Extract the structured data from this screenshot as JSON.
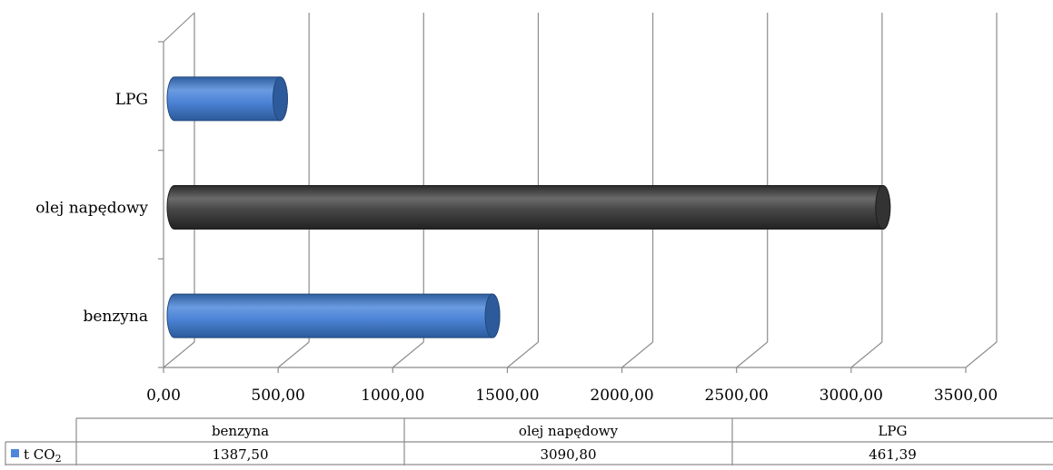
{
  "chart_data": {
    "type": "bar",
    "orientation": "horizontal",
    "style": "3d-cylinder",
    "categories": [
      "benzyna",
      "olej napędowy",
      "LPG"
    ],
    "series": [
      {
        "name": "t CO₂",
        "values": [
          1387.5,
          3090.8,
          461.39
        ]
      }
    ],
    "value_labels": [
      "1387,50",
      "3090,80",
      "461,39"
    ],
    "xlim": [
      0,
      3500
    ],
    "x_ticks": [
      0,
      500,
      1000,
      1500,
      2000,
      2500,
      3000,
      3500
    ],
    "x_tick_labels": [
      "0,00",
      "500,00",
      "1000,00",
      "1500,00",
      "2000,00",
      "2500,00",
      "3000,00",
      "3500,00"
    ],
    "bar_colors": [
      "#4f86d9",
      "#4a4a4a",
      "#4f86d9"
    ],
    "grid": true,
    "legend_placement": "data-table"
  },
  "legend": {
    "label_prefix": "t CO",
    "label_subscript": "2",
    "color": "#4f86d9"
  }
}
